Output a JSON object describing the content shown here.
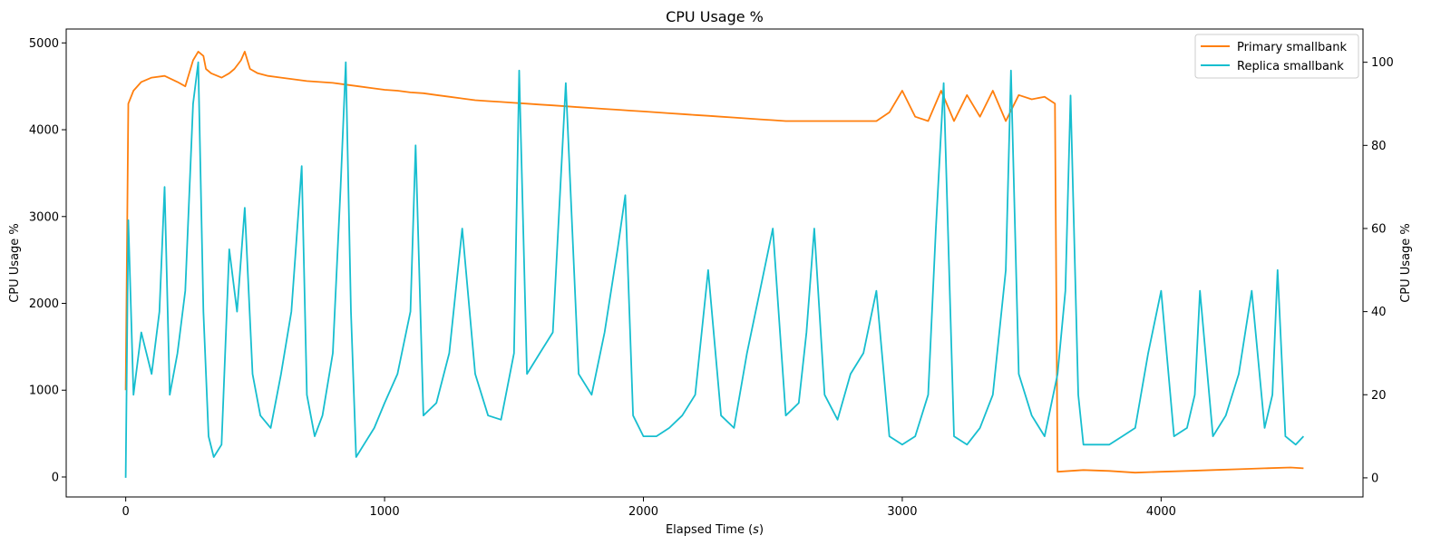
{
  "chart_data": {
    "type": "line",
    "title": "CPU Usage %",
    "xlabel_prefix": "Elapsed Time (",
    "xlabel_var": "s",
    "xlabel_suffix": ")",
    "ylabel_left": "CPU Usage %",
    "ylabel_right": "CPU Usage %",
    "xlim": [
      -230,
      4780
    ],
    "ylim_left": [
      -230,
      5160
    ],
    "ylim_right": [
      -4.6,
      108
    ],
    "x_ticks": [
      0,
      1000,
      2000,
      3000,
      4000
    ],
    "x_tick_labels": [
      "0",
      "1000",
      "2000",
      "3000",
      "4000"
    ],
    "y_left_ticks": [
      0,
      1000,
      2000,
      3000,
      4000,
      5000
    ],
    "y_left_tick_labels": [
      "0",
      "1000",
      "2000",
      "3000",
      "4000",
      "5000"
    ],
    "y_right_ticks": [
      0,
      20,
      40,
      60,
      80,
      100
    ],
    "y_right_tick_labels": [
      "0",
      "20",
      "40",
      "60",
      "80",
      "100"
    ],
    "legend_position": "top-right",
    "grid": false,
    "series": [
      {
        "name": "Primary smallbank",
        "axis": "left",
        "color": "#ff7f0e",
        "x": [
          0,
          10,
          30,
          60,
          100,
          150,
          200,
          230,
          260,
          280,
          300,
          310,
          330,
          370,
          400,
          420,
          445,
          460,
          480,
          510,
          550,
          600,
          650,
          700,
          750,
          800,
          850,
          900,
          950,
          1000,
          1050,
          1100,
          1150,
          1200,
          1250,
          1300,
          1350,
          1400,
          1450,
          1500,
          1550,
          1600,
          1650,
          1700,
          1750,
          1800,
          1850,
          1900,
          1950,
          2000,
          2050,
          2100,
          2150,
          2200,
          2250,
          2300,
          2350,
          2400,
          2450,
          2500,
          2550,
          2600,
          2650,
          2700,
          2750,
          2800,
          2850,
          2900,
          2950,
          3000,
          3050,
          3100,
          3150,
          3200,
          3250,
          3300,
          3350,
          3400,
          3450,
          3500,
          3550,
          3590,
          3600,
          3700,
          3800,
          3900,
          4000,
          4100,
          4200,
          4300,
          4400,
          4500,
          4550
        ],
        "y": [
          1000,
          4300,
          4450,
          4550,
          4600,
          4620,
          4550,
          4500,
          4800,
          4900,
          4850,
          4700,
          4650,
          4600,
          4650,
          4700,
          4800,
          4900,
          4700,
          4650,
          4620,
          4600,
          4580,
          4560,
          4550,
          4540,
          4520,
          4500,
          4480,
          4460,
          4450,
          4430,
          4420,
          4400,
          4380,
          4360,
          4340,
          4330,
          4320,
          4310,
          4300,
          4290,
          4280,
          4270,
          4260,
          4250,
          4240,
          4230,
          4220,
          4210,
          4200,
          4190,
          4180,
          4170,
          4160,
          4150,
          4140,
          4130,
          4120,
          4110,
          4100,
          4100,
          4100,
          4100,
          4100,
          4100,
          4100,
          4100,
          4200,
          4450,
          4150,
          4100,
          4450,
          4100,
          4400,
          4150,
          4450,
          4100,
          4400,
          4350,
          4380,
          4300,
          60,
          80,
          70,
          50,
          60,
          70,
          80,
          90,
          100,
          110,
          100
        ]
      },
      {
        "name": "Replica smallbank",
        "axis": "right",
        "color": "#17becf",
        "x": [
          0,
          10,
          30,
          60,
          100,
          130,
          150,
          170,
          200,
          230,
          260,
          280,
          300,
          320,
          340,
          370,
          400,
          430,
          460,
          490,
          520,
          560,
          600,
          640,
          680,
          700,
          730,
          760,
          800,
          830,
          850,
          870,
          890,
          920,
          960,
          1000,
          1050,
          1100,
          1120,
          1150,
          1200,
          1250,
          1300,
          1350,
          1400,
          1450,
          1500,
          1520,
          1550,
          1600,
          1650,
          1700,
          1750,
          1800,
          1850,
          1900,
          1930,
          1960,
          2000,
          2050,
          2100,
          2150,
          2200,
          2250,
          2300,
          2350,
          2400,
          2450,
          2500,
          2550,
          2600,
          2630,
          2660,
          2700,
          2750,
          2800,
          2850,
          2900,
          2950,
          3000,
          3050,
          3100,
          3130,
          3160,
          3200,
          3250,
          3300,
          3350,
          3400,
          3420,
          3450,
          3500,
          3550,
          3600,
          3630,
          3650,
          3680,
          3700,
          3750,
          3800,
          3850,
          3900,
          3950,
          4000,
          4050,
          4100,
          4130,
          4150,
          4200,
          4250,
          4300,
          4350,
          4400,
          4430,
          4450,
          4480,
          4520,
          4550
        ],
        "y": [
          0,
          62,
          20,
          35,
          25,
          40,
          70,
          20,
          30,
          45,
          90,
          100,
          40,
          10,
          5,
          8,
          55,
          40,
          65,
          25,
          15,
          12,
          25,
          40,
          75,
          20,
          10,
          15,
          30,
          70,
          100,
          40,
          5,
          8,
          12,
          18,
          25,
          40,
          80,
          15,
          18,
          30,
          60,
          25,
          15,
          14,
          30,
          98,
          25,
          30,
          35,
          95,
          25,
          20,
          35,
          55,
          68,
          15,
          10,
          10,
          12,
          15,
          20,
          50,
          15,
          12,
          30,
          45,
          60,
          15,
          18,
          35,
          60,
          20,
          14,
          25,
          30,
          45,
          10,
          8,
          10,
          20,
          60,
          95,
          10,
          8,
          12,
          20,
          50,
          98,
          25,
          15,
          10,
          25,
          45,
          92,
          20,
          8,
          8,
          8,
          10,
          12,
          30,
          45,
          10,
          12,
          20,
          45,
          10,
          15,
          25,
          45,
          12,
          20,
          50,
          10,
          8,
          10
        ]
      }
    ]
  }
}
